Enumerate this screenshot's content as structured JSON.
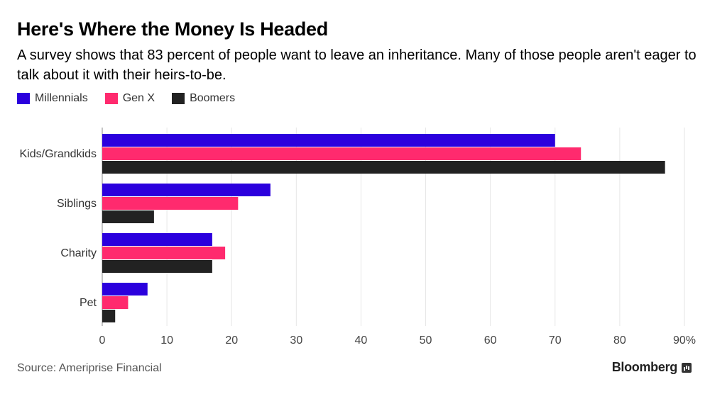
{
  "title": "Here's Where the Money Is Headed",
  "subtitle": "A survey shows that 83 percent of people want to leave an inheritance. Many of those people aren't eager to talk about it with their heirs-to-be.",
  "source": "Source: Ameriprise Financial",
  "brand": "Bloomberg",
  "colors": {
    "millennials": "#2b00dd",
    "genx": "#ff2a6e",
    "boomers": "#222222",
    "grid": "#e6e6e6",
    "axis": "#888888"
  },
  "chart_data": {
    "type": "bar",
    "orientation": "horizontal",
    "categories": [
      "Kids/Grandkids",
      "Siblings",
      "Charity",
      "Pet"
    ],
    "series": [
      {
        "name": "Millennials",
        "color": "#2b00dd",
        "values": [
          70,
          26,
          17,
          7
        ]
      },
      {
        "name": "Gen X",
        "color": "#ff2a6e",
        "values": [
          74,
          21,
          19,
          4
        ]
      },
      {
        "name": "Boomers",
        "color": "#222222",
        "values": [
          87,
          8,
          17,
          2
        ]
      }
    ],
    "xlim": [
      0,
      90
    ],
    "xticks": [
      0,
      10,
      20,
      30,
      40,
      50,
      60,
      70,
      80,
      90
    ],
    "xtick_labels": [
      "0",
      "10",
      "20",
      "30",
      "40",
      "50",
      "60",
      "70",
      "80",
      "90%"
    ],
    "grid": true,
    "legend_position": "top-left"
  }
}
